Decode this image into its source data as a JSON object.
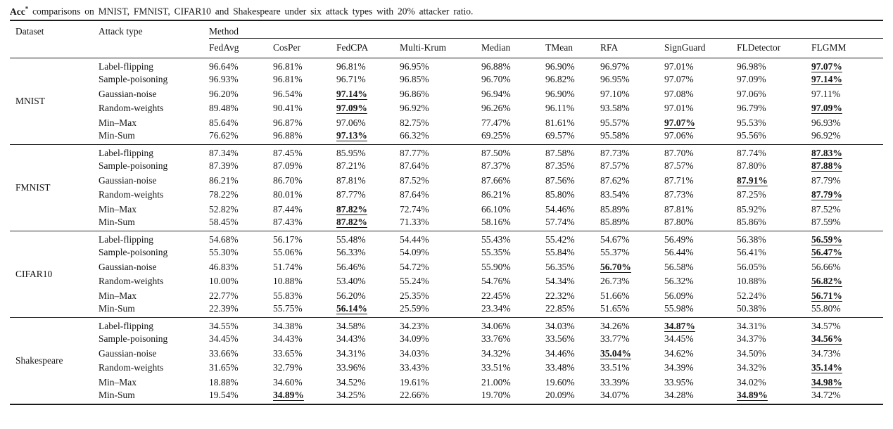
{
  "colors": {
    "text": "#151515",
    "rule": "#1b1b1b",
    "background": "#ffffff"
  },
  "caption": {
    "metric": "Acc",
    "sup": "*",
    "text": " comparisons on MNIST, FMNIST, CIFAR10 and Shakespeare under six attack types with 20% attacker ratio."
  },
  "table": {
    "col_headers": {
      "dataset": "Dataset",
      "attack_type": "Attack type",
      "method_group": "Method"
    },
    "methods": [
      "FedAvg",
      "CosPer",
      "FedCPA",
      "Multi-Krum",
      "Median",
      "TMean",
      "RFA",
      "SignGuard",
      "FLDetector",
      "FLGMM"
    ],
    "groups": [
      {
        "dataset": "MNIST",
        "rows": [
          {
            "attack": "Label-flipping",
            "values": [
              "96.64%",
              "96.81%",
              "96.81%",
              "96.95%",
              "96.88%",
              "96.90%",
              "96.97%",
              "97.01%",
              "96.98%",
              "97.07%"
            ],
            "best": [
              9
            ]
          },
          {
            "attack": "Sample-poisoning",
            "values": [
              "96.93%",
              "96.81%",
              "96.71%",
              "96.85%",
              "96.70%",
              "96.82%",
              "96.95%",
              "97.07%",
              "97.09%",
              "97.14%"
            ],
            "best": [
              9
            ]
          },
          {
            "attack": "Gaussian-noise",
            "values": [
              "96.20%",
              "96.54%",
              "97.14%",
              "96.86%",
              "96.94%",
              "96.90%",
              "97.10%",
              "97.08%",
              "97.06%",
              "97.11%"
            ],
            "best": [
              2
            ]
          },
          {
            "attack": "Random-weights",
            "values": [
              "89.48%",
              "90.41%",
              "97.09%",
              "96.92%",
              "96.26%",
              "96.11%",
              "93.58%",
              "97.01%",
              "96.79%",
              "97.09%"
            ],
            "best": [
              2,
              9
            ]
          },
          {
            "attack": "Min–Max",
            "values": [
              "85.64%",
              "96.87%",
              "97.06%",
              "82.75%",
              "77.47%",
              "81.61%",
              "95.57%",
              "97.07%",
              "95.53%",
              "96.93%"
            ],
            "best": [
              7
            ]
          },
          {
            "attack": "Min-Sum",
            "values": [
              "76.62%",
              "96.88%",
              "97.13%",
              "66.32%",
              "69.25%",
              "69.57%",
              "95.58%",
              "97.06%",
              "95.56%",
              "96.92%"
            ],
            "best": [
              2
            ]
          }
        ]
      },
      {
        "dataset": "FMNIST",
        "rows": [
          {
            "attack": "Label-flipping",
            "values": [
              "87.34%",
              "87.45%",
              "85.95%",
              "87.77%",
              "87.50%",
              "87.58%",
              "87.73%",
              "87.70%",
              "87.74%",
              "87.83%"
            ],
            "best": [
              9
            ]
          },
          {
            "attack": "Sample-poisoning",
            "values": [
              "87.39%",
              "87.09%",
              "87.21%",
              "87.64%",
              "87.37%",
              "87.35%",
              "87.57%",
              "87.57%",
              "87.80%",
              "87.88%"
            ],
            "best": [
              9
            ]
          },
          {
            "attack": "Gaussian-noise",
            "values": [
              "86.21%",
              "86.70%",
              "87.81%",
              "87.52%",
              "87.66%",
              "87.56%",
              "87.62%",
              "87.71%",
              "87.91%",
              "87.79%"
            ],
            "best": [
              8
            ]
          },
          {
            "attack": "Random-weights",
            "values": [
              "78.22%",
              "80.01%",
              "87.77%",
              "87.64%",
              "86.21%",
              "85.80%",
              "83.54%",
              "87.73%",
              "87.25%",
              "87.79%"
            ],
            "best": [
              9
            ]
          },
          {
            "attack": "Min–Max",
            "values": [
              "52.82%",
              "87.44%",
              "87.82%",
              "72.74%",
              "66.10%",
              "54.46%",
              "85.89%",
              "87.81%",
              "85.92%",
              "87.52%"
            ],
            "best": [
              2
            ]
          },
          {
            "attack": "Min-Sum",
            "values": [
              "58.45%",
              "87.43%",
              "87.82%",
              "71.33%",
              "58.16%",
              "57.74%",
              "85.89%",
              "87.80%",
              "85.86%",
              "87.59%"
            ],
            "best": [
              2
            ]
          }
        ]
      },
      {
        "dataset": "CIFAR10",
        "rows": [
          {
            "attack": "Label-flipping",
            "values": [
              "54.68%",
              "56.17%",
              "55.48%",
              "54.44%",
              "55.43%",
              "55.42%",
              "54.67%",
              "56.49%",
              "56.38%",
              "56.59%"
            ],
            "best": [
              9
            ]
          },
          {
            "attack": "Sample-poisoning",
            "values": [
              "55.30%",
              "55.06%",
              "56.33%",
              "54.09%",
              "55.35%",
              "55.84%",
              "55.37%",
              "56.44%",
              "56.41%",
              "56.47%"
            ],
            "best": [
              9
            ]
          },
          {
            "attack": "Gaussian-noise",
            "values": [
              "46.83%",
              "51.74%",
              "56.46%",
              "54.72%",
              "55.90%",
              "56.35%",
              "56.70%",
              "56.58%",
              "56.05%",
              "56.66%"
            ],
            "best": [
              6
            ]
          },
          {
            "attack": "Random-weights",
            "values": [
              "10.00%",
              "10.88%",
              "53.40%",
              "55.24%",
              "54.76%",
              "54.34%",
              "26.73%",
              "56.32%",
              "10.88%",
              "56.82%"
            ],
            "best": [
              9
            ]
          },
          {
            "attack": "Min–Max",
            "values": [
              "22.77%",
              "55.83%",
              "56.20%",
              "25.35%",
              "22.45%",
              "22.32%",
              "51.66%",
              "56.09%",
              "52.24%",
              "56.71%"
            ],
            "best": [
              9
            ]
          },
          {
            "attack": "Min-Sum",
            "values": [
              "22.39%",
              "55.75%",
              "56.14%",
              "25.59%",
              "23.34%",
              "22.85%",
              "51.65%",
              "55.98%",
              "50.38%",
              "55.80%"
            ],
            "best": [
              2
            ]
          }
        ]
      },
      {
        "dataset": "Shakespeare",
        "rows": [
          {
            "attack": "Label-flipping",
            "values": [
              "34.55%",
              "34.38%",
              "34.58%",
              "34.23%",
              "34.06%",
              "34.03%",
              "34.26%",
              "34.87%",
              "34.31%",
              "34.57%"
            ],
            "best": [
              7
            ]
          },
          {
            "attack": "Sample-poisoning",
            "values": [
              "34.45%",
              "34.43%",
              "34.43%",
              "34.09%",
              "33.76%",
              "33.56%",
              "33.77%",
              "34.45%",
              "34.37%",
              "34.56%"
            ],
            "best": [
              9
            ]
          },
          {
            "attack": "Gaussian-noise",
            "values": [
              "33.66%",
              "33.65%",
              "34.31%",
              "34.03%",
              "34.32%",
              "34.46%",
              "35.04%",
              "34.62%",
              "34.50%",
              "34.73%"
            ],
            "best": [
              6
            ]
          },
          {
            "attack": "Random-weights",
            "values": [
              "31.65%",
              "32.79%",
              "33.96%",
              "33.43%",
              "33.51%",
              "33.48%",
              "33.51%",
              "34.39%",
              "34.32%",
              "35.14%"
            ],
            "best": [
              9
            ]
          },
          {
            "attack": "Min–Max",
            "values": [
              "18.88%",
              "34.60%",
              "34.52%",
              "19.61%",
              "21.00%",
              "19.60%",
              "33.39%",
              "33.95%",
              "34.02%",
              "34.98%"
            ],
            "best": [
              9
            ]
          },
          {
            "attack": "Min-Sum",
            "values": [
              "19.54%",
              "34.89%",
              "34.25%",
              "22.66%",
              "19.70%",
              "20.09%",
              "34.07%",
              "34.28%",
              "34.89%",
              "34.72%"
            ],
            "best": [
              1,
              8
            ]
          }
        ]
      }
    ]
  }
}
